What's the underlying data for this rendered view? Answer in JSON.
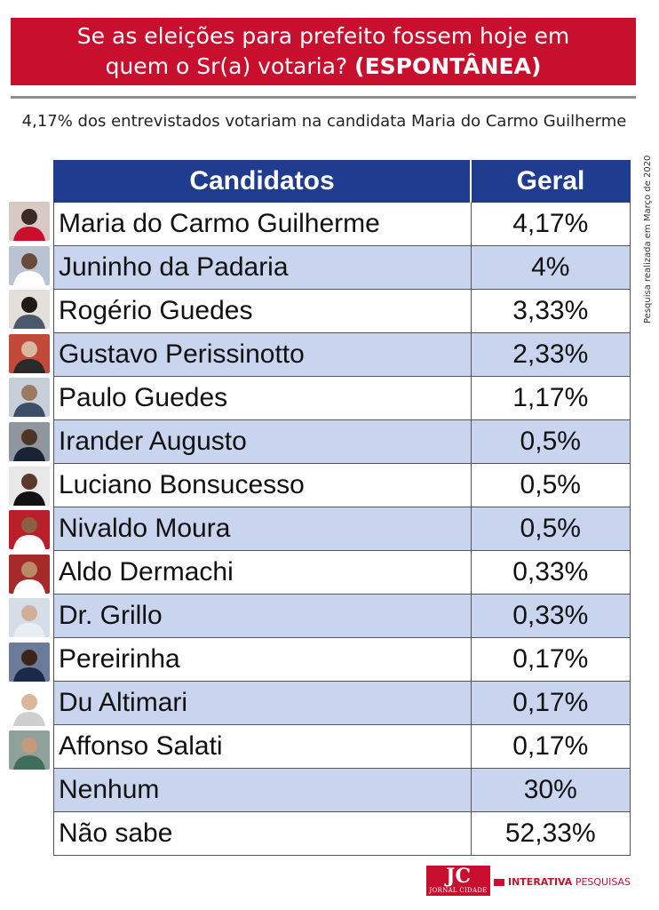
{
  "header": {
    "line1": "Se as eleições para prefeito fossem hoje em",
    "line2_prefix": "quem o Sr(a) votaria?",
    "line2_strong": "(ESPONTÂNEA)"
  },
  "subtitle": "4,17% dos entrevistados votariam na candidata Maria do Carmo Guilherme",
  "side_note": "Pesquisa realizada em Março de 2020",
  "footer": {
    "logo_text": "JC",
    "logo_subtext": "JORNAL CIDADE",
    "brand_bold": "INTERATIVA",
    "brand_rest": "PESQUISAS"
  },
  "colors": {
    "header_red": "#c8102e",
    "table_header_blue": "#1f3c8f",
    "row_alt_blue": "#c9d5ee"
  },
  "chart_data": {
    "type": "table",
    "columns": [
      "Candidatos",
      "Geral"
    ],
    "rows": [
      {
        "name": "Maria do Carmo Guilherme",
        "value": "4,17%",
        "photo": true
      },
      {
        "name": "Juninho da Padaria",
        "value": "4%",
        "photo": true
      },
      {
        "name": "Rogério Guedes",
        "value": "3,33%",
        "photo": true
      },
      {
        "name": "Gustavo Perissinotto",
        "value": "2,33%",
        "photo": true
      },
      {
        "name": "Paulo Guedes",
        "value": "1,17%",
        "photo": true
      },
      {
        "name": "Irander Augusto",
        "value": "0,5%",
        "photo": true
      },
      {
        "name": "Luciano Bonsucesso",
        "value": "0,5%",
        "photo": true
      },
      {
        "name": "Nivaldo Moura",
        "value": "0,5%",
        "photo": true
      },
      {
        "name": "Aldo Dermachi",
        "value": "0,33%",
        "photo": true
      },
      {
        "name": "Dr. Grillo",
        "value": "0,33%",
        "photo": true
      },
      {
        "name": "Pereirinha",
        "value": "0,17%",
        "photo": true
      },
      {
        "name": "Du Altimari",
        "value": "0,17%",
        "photo": true
      },
      {
        "name": "Affonso Salati",
        "value": "0,17%",
        "photo": true
      },
      {
        "name": "Nenhum",
        "value": "30%",
        "photo": false
      },
      {
        "name": "Não sabe",
        "value": "52,33%",
        "photo": false
      }
    ]
  }
}
